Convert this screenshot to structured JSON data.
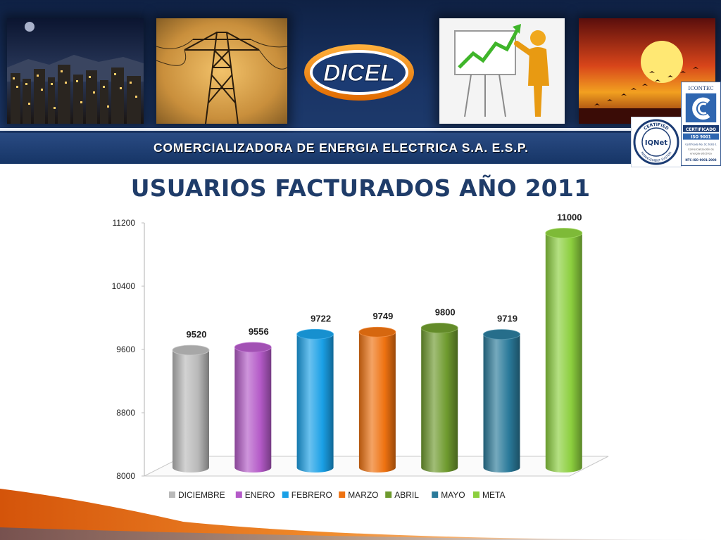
{
  "header": {
    "company_name": "COMERCIALIZADORA DE ENERGIA ELECTRICA S.A. E.S.P.",
    "logo_text": "DICEL",
    "photos": [
      "city-night-photo",
      "power-tower-photo",
      "growth-chart-figure-photo",
      "sunset-photo"
    ],
    "seals": {
      "iqnet": {
        "top_text": "CERTIFIED",
        "center": "IQNet",
        "bottom_text": "MANAGEMENT SYSTEM"
      },
      "icontec": {
        "top": "ICONTEC",
        "certified": "CERTIFICADO",
        "iso": "ISO 9001",
        "cert_no": "Certificado No. SC 6181-1",
        "scope_1": "Comercialización de",
        "scope_2": "energía eléctrica",
        "ntc": "NTC-ISO 9001:2008"
      }
    }
  },
  "colors": {
    "banner": "#1a3566",
    "title": "#1f3c69",
    "logo_orange": "#f07c00",
    "logo_blue": "#1b3b73"
  },
  "chart_data": {
    "type": "bar",
    "title": "USUARIOS FACTURADOS AÑO 2011",
    "categories": [
      "DICIEMBRE",
      "ENERO",
      "FEBRERO",
      "MARZO",
      "ABRIL",
      "MAYO",
      "META"
    ],
    "values": [
      9520,
      9556,
      9722,
      9749,
      9800,
      9719,
      11000
    ],
    "colors": [
      "#b9b9b9",
      "#b45ac8",
      "#1aa0e6",
      "#ee7211",
      "#6e9a2e",
      "#2a7a9a",
      "#8ccf3e"
    ],
    "ylim": [
      8000,
      11200
    ],
    "yticks": [
      8000,
      8800,
      9600,
      10400,
      11200
    ],
    "style": "3d-cylinder",
    "legend": "bottom",
    "grid": false
  }
}
